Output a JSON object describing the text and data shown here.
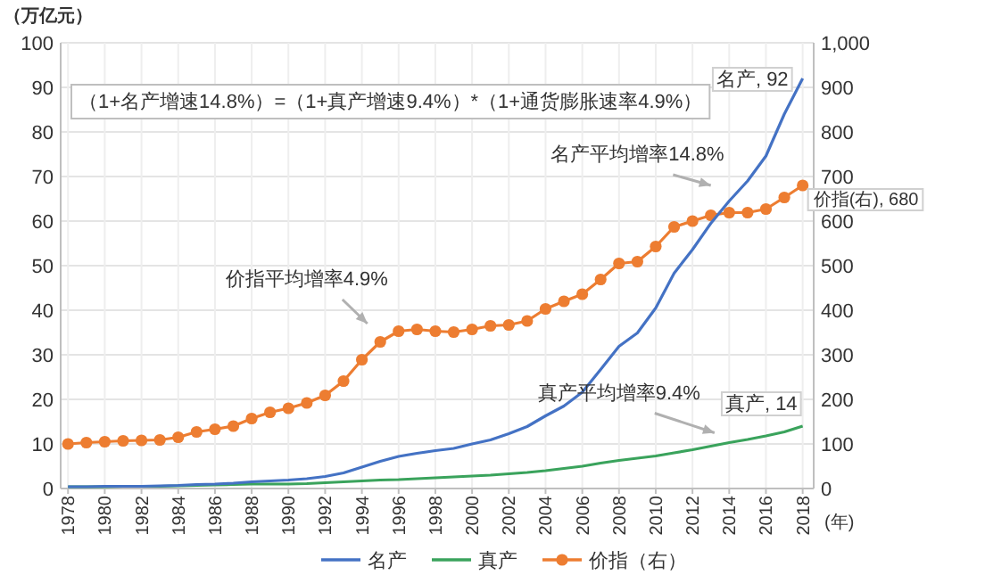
{
  "chart_data": {
    "type": "line",
    "ylabel": "（万亿元）",
    "xlabel": "(年)",
    "x": [
      1978,
      1979,
      1980,
      1981,
      1982,
      1983,
      1984,
      1985,
      1986,
      1987,
      1988,
      1989,
      1990,
      1991,
      1992,
      1993,
      1994,
      1995,
      1996,
      1997,
      1998,
      1999,
      2000,
      2001,
      2002,
      2003,
      2004,
      2005,
      2006,
      2007,
      2008,
      2009,
      2010,
      2011,
      2012,
      2013,
      2014,
      2015,
      2016,
      2017,
      2018
    ],
    "xlim": [
      1977.6,
      2018.6
    ],
    "xticks": [
      1978,
      1980,
      1982,
      1984,
      1986,
      1988,
      1990,
      1992,
      1994,
      1996,
      1998,
      2000,
      2002,
      2004,
      2006,
      2008,
      2010,
      2012,
      2014,
      2016,
      2018
    ],
    "ylim": [
      0,
      100
    ],
    "yticks": [
      0,
      10,
      20,
      30,
      40,
      50,
      60,
      70,
      80,
      90,
      100
    ],
    "y2lim": [
      0,
      1000
    ],
    "y2ticks": [
      0,
      100,
      200,
      300,
      400,
      500,
      600,
      700,
      800,
      900,
      {
        "value": 1000,
        "label": "1,000"
      }
    ],
    "grid": true,
    "legend": "bottom",
    "series": [
      {
        "name": "名产",
        "color": "#4472c4",
        "marker": "none",
        "values": [
          0.4,
          0.4,
          0.5,
          0.5,
          0.5,
          0.6,
          0.7,
          0.9,
          1.0,
          1.2,
          1.5,
          1.7,
          1.9,
          2.2,
          2.7,
          3.5,
          4.8,
          6.1,
          7.2,
          7.9,
          8.5,
          9.0,
          10.0,
          10.9,
          12.3,
          13.9,
          16.3,
          18.5,
          21.6,
          26.7,
          31.9,
          34.9,
          40.5,
          48.3,
          53.6,
          59.5,
          64.5,
          69.0,
          74.6,
          84.0,
          92
        ],
        "value_labels": [
          null,
          null,
          null,
          null,
          null,
          null,
          null,
          null,
          null,
          null,
          null,
          null,
          null,
          null,
          null,
          null,
          null,
          null,
          null,
          null,
          null,
          null,
          null,
          null,
          null,
          null,
          null,
          null,
          null,
          null,
          null,
          null,
          null,
          null,
          null,
          null,
          null,
          null,
          null,
          null,
          "名产, 92"
        ]
      },
      {
        "name": "真产",
        "color": "#3aa35c",
        "marker": "none",
        "values": [
          0.4,
          0.4,
          0.4,
          0.5,
          0.5,
          0.5,
          0.6,
          0.7,
          0.8,
          0.9,
          1.0,
          1.0,
          1.0,
          1.1,
          1.3,
          1.5,
          1.7,
          1.9,
          2.0,
          2.2,
          2.4,
          2.6,
          2.8,
          3.0,
          3.3,
          3.6,
          4.0,
          4.5,
          5.0,
          5.7,
          6.3,
          6.8,
          7.3,
          8.0,
          8.7,
          9.5,
          10.3,
          11.0,
          11.8,
          12.7,
          14
        ],
        "value_labels": [
          null,
          null,
          null,
          null,
          null,
          null,
          null,
          null,
          null,
          null,
          null,
          null,
          null,
          null,
          null,
          null,
          null,
          null,
          null,
          null,
          null,
          null,
          null,
          null,
          null,
          null,
          null,
          null,
          null,
          null,
          null,
          null,
          null,
          null,
          null,
          null,
          null,
          null,
          null,
          null,
          "真产, 14"
        ]
      },
      {
        "name": "价指（右）",
        "color": "#ed7d31",
        "axis": "y2",
        "marker": "circle",
        "values": [
          100,
          103,
          105,
          107,
          108,
          109,
          115,
          127,
          133,
          140,
          157,
          171,
          180,
          192,
          209,
          241,
          289,
          329,
          353,
          357,
          353,
          351,
          357,
          365,
          367,
          376,
          403,
          420,
          436,
          469,
          505,
          509,
          543,
          587,
          600,
          613,
          619,
          619,
          627,
          653,
          680
        ],
        "value_labels": [
          null,
          null,
          null,
          null,
          null,
          null,
          null,
          null,
          null,
          null,
          null,
          null,
          null,
          null,
          null,
          null,
          null,
          null,
          null,
          null,
          null,
          null,
          null,
          null,
          null,
          null,
          null,
          null,
          null,
          null,
          null,
          null,
          null,
          null,
          null,
          null,
          null,
          null,
          null,
          null,
          "价指(右), 680"
        ]
      }
    ],
    "annotations": [
      "（1+名产增速14.8%）=（1+真产增速9.4%）*（1+通货膨胀速率4.9%）",
      "名产平均增率14.8%",
      "价指平均增率4.9%",
      "真产平均增率9.4%"
    ]
  }
}
